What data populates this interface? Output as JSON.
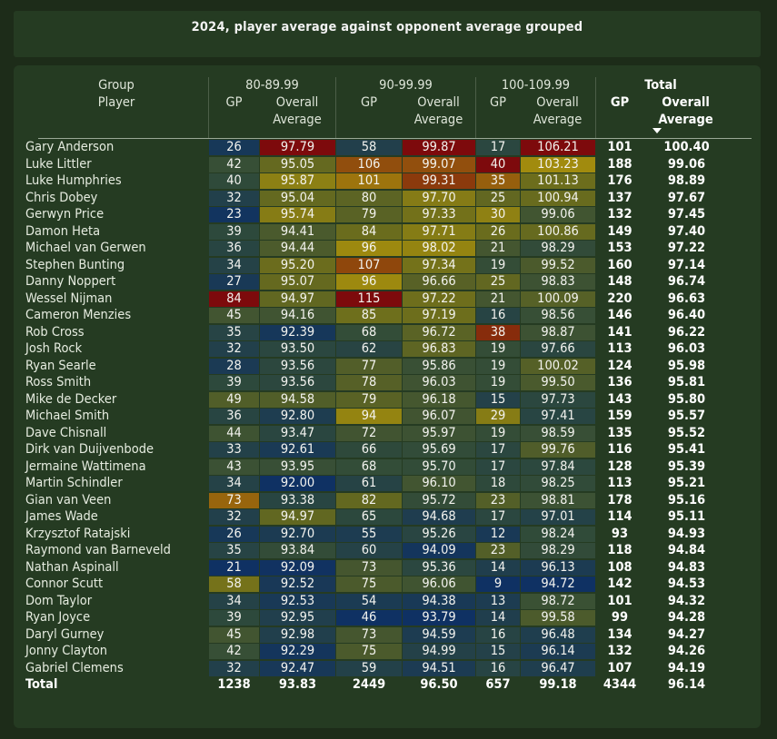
{
  "title": "2024, player average against opponent average grouped",
  "header": {
    "row_label_1": "Group",
    "row_label_2": "Player",
    "groups": [
      "80-89.99",
      "90-99.99",
      "100-109.99",
      "Total"
    ],
    "gp": "GP",
    "overall": "Overall",
    "average": "Average"
  },
  "colors": {
    "background": "#1d2c19",
    "card": "#253b22",
    "scale_low": "#0f3163",
    "scale_mid": "#a48d0d",
    "scale_high": "#7d0a0c"
  },
  "rows": [
    {
      "player": "Gary Anderson",
      "g1_gp": "26",
      "g1_avg": "97.79",
      "g2_gp": "58",
      "g2_avg": "99.87",
      "g3_gp": "17",
      "g3_avg": "106.21",
      "tot_gp": "101",
      "tot_avg": "100.40"
    },
    {
      "player": "Luke Littler",
      "g1_gp": "42",
      "g1_avg": "95.05",
      "g2_gp": "106",
      "g2_avg": "99.07",
      "g3_gp": "40",
      "g3_avg": "103.23",
      "tot_gp": "188",
      "tot_avg": "99.06"
    },
    {
      "player": "Luke Humphries",
      "g1_gp": "40",
      "g1_avg": "95.87",
      "g2_gp": "101",
      "g2_avg": "99.31",
      "g3_gp": "35",
      "g3_avg": "101.13",
      "tot_gp": "176",
      "tot_avg": "98.89"
    },
    {
      "player": "Chris Dobey",
      "g1_gp": "32",
      "g1_avg": "95.04",
      "g2_gp": "80",
      "g2_avg": "97.70",
      "g3_gp": "25",
      "g3_avg": "100.94",
      "tot_gp": "137",
      "tot_avg": "97.67"
    },
    {
      "player": "Gerwyn Price",
      "g1_gp": "23",
      "g1_avg": "95.74",
      "g2_gp": "79",
      "g2_avg": "97.33",
      "g3_gp": "30",
      "g3_avg": "99.06",
      "tot_gp": "132",
      "tot_avg": "97.45"
    },
    {
      "player": "Damon Heta",
      "g1_gp": "39",
      "g1_avg": "94.41",
      "g2_gp": "84",
      "g2_avg": "97.71",
      "g3_gp": "26",
      "g3_avg": "100.86",
      "tot_gp": "149",
      "tot_avg": "97.40"
    },
    {
      "player": "Michael van Gerwen",
      "g1_gp": "36",
      "g1_avg": "94.44",
      "g2_gp": "96",
      "g2_avg": "98.02",
      "g3_gp": "21",
      "g3_avg": "98.29",
      "tot_gp": "153",
      "tot_avg": "97.22"
    },
    {
      "player": "Stephen Bunting",
      "g1_gp": "34",
      "g1_avg": "95.20",
      "g2_gp": "107",
      "g2_avg": "97.34",
      "g3_gp": "19",
      "g3_avg": "99.52",
      "tot_gp": "160",
      "tot_avg": "97.14"
    },
    {
      "player": "Danny Noppert",
      "g1_gp": "27",
      "g1_avg": "95.07",
      "g2_gp": "96",
      "g2_avg": "96.66",
      "g3_gp": "25",
      "g3_avg": "98.83",
      "tot_gp": "148",
      "tot_avg": "96.74"
    },
    {
      "player": "Wessel Nijman",
      "g1_gp": "84",
      "g1_avg": "94.97",
      "g2_gp": "115",
      "g2_avg": "97.22",
      "g3_gp": "21",
      "g3_avg": "100.09",
      "tot_gp": "220",
      "tot_avg": "96.63"
    },
    {
      "player": "Cameron Menzies",
      "g1_gp": "45",
      "g1_avg": "94.16",
      "g2_gp": "85",
      "g2_avg": "97.19",
      "g3_gp": "16",
      "g3_avg": "98.56",
      "tot_gp": "146",
      "tot_avg": "96.40"
    },
    {
      "player": "Rob Cross",
      "g1_gp": "35",
      "g1_avg": "92.39",
      "g2_gp": "68",
      "g2_avg": "96.72",
      "g3_gp": "38",
      "g3_avg": "98.87",
      "tot_gp": "141",
      "tot_avg": "96.22"
    },
    {
      "player": "Josh Rock",
      "g1_gp": "32",
      "g1_avg": "93.50",
      "g2_gp": "62",
      "g2_avg": "96.83",
      "g3_gp": "19",
      "g3_avg": "97.66",
      "tot_gp": "113",
      "tot_avg": "96.03"
    },
    {
      "player": "Ryan Searle",
      "g1_gp": "28",
      "g1_avg": "93.56",
      "g2_gp": "77",
      "g2_avg": "95.86",
      "g3_gp": "19",
      "g3_avg": "100.02",
      "tot_gp": "124",
      "tot_avg": "95.98"
    },
    {
      "player": "Ross Smith",
      "g1_gp": "39",
      "g1_avg": "93.56",
      "g2_gp": "78",
      "g2_avg": "96.03",
      "g3_gp": "19",
      "g3_avg": "99.50",
      "tot_gp": "136",
      "tot_avg": "95.81"
    },
    {
      "player": "Mike de Decker",
      "g1_gp": "49",
      "g1_avg": "94.58",
      "g2_gp": "79",
      "g2_avg": "96.18",
      "g3_gp": "15",
      "g3_avg": "97.73",
      "tot_gp": "143",
      "tot_avg": "95.80"
    },
    {
      "player": "Michael Smith",
      "g1_gp": "36",
      "g1_avg": "92.80",
      "g2_gp": "94",
      "g2_avg": "96.07",
      "g3_gp": "29",
      "g3_avg": "97.41",
      "tot_gp": "159",
      "tot_avg": "95.57"
    },
    {
      "player": "Dave Chisnall",
      "g1_gp": "44",
      "g1_avg": "93.47",
      "g2_gp": "72",
      "g2_avg": "95.97",
      "g3_gp": "19",
      "g3_avg": "98.59",
      "tot_gp": "135",
      "tot_avg": "95.52"
    },
    {
      "player": "Dirk van Duijvenbode",
      "g1_gp": "33",
      "g1_avg": "92.61",
      "g2_gp": "66",
      "g2_avg": "95.69",
      "g3_gp": "17",
      "g3_avg": "99.76",
      "tot_gp": "116",
      "tot_avg": "95.41"
    },
    {
      "player": "Jermaine Wattimena",
      "g1_gp": "43",
      "g1_avg": "93.95",
      "g2_gp": "68",
      "g2_avg": "95.70",
      "g3_gp": "17",
      "g3_avg": "97.84",
      "tot_gp": "128",
      "tot_avg": "95.39"
    },
    {
      "player": "Martin Schindler",
      "g1_gp": "34",
      "g1_avg": "92.00",
      "g2_gp": "61",
      "g2_avg": "96.10",
      "g3_gp": "18",
      "g3_avg": "98.25",
      "tot_gp": "113",
      "tot_avg": "95.21"
    },
    {
      "player": "Gian van Veen",
      "g1_gp": "73",
      "g1_avg": "93.38",
      "g2_gp": "82",
      "g2_avg": "95.72",
      "g3_gp": "23",
      "g3_avg": "98.81",
      "tot_gp": "178",
      "tot_avg": "95.16"
    },
    {
      "player": "James Wade",
      "g1_gp": "32",
      "g1_avg": "94.97",
      "g2_gp": "65",
      "g2_avg": "94.68",
      "g3_gp": "17",
      "g3_avg": "97.01",
      "tot_gp": "114",
      "tot_avg": "95.11"
    },
    {
      "player": "Krzysztof Ratajski",
      "g1_gp": "26",
      "g1_avg": "92.70",
      "g2_gp": "55",
      "g2_avg": "95.26",
      "g3_gp": "12",
      "g3_avg": "98.24",
      "tot_gp": "93",
      "tot_avg": "94.93"
    },
    {
      "player": "Raymond van Barneveld",
      "g1_gp": "35",
      "g1_avg": "93.84",
      "g2_gp": "60",
      "g2_avg": "94.09",
      "g3_gp": "23",
      "g3_avg": "98.29",
      "tot_gp": "118",
      "tot_avg": "94.84"
    },
    {
      "player": "Nathan Aspinall",
      "g1_gp": "21",
      "g1_avg": "92.09",
      "g2_gp": "73",
      "g2_avg": "95.36",
      "g3_gp": "14",
      "g3_avg": "96.13",
      "tot_gp": "108",
      "tot_avg": "94.83"
    },
    {
      "player": "Connor Scutt",
      "g1_gp": "58",
      "g1_avg": "92.52",
      "g2_gp": "75",
      "g2_avg": "96.06",
      "g3_gp": "9",
      "g3_avg": "94.72",
      "tot_gp": "142",
      "tot_avg": "94.53"
    },
    {
      "player": "Dom Taylor",
      "g1_gp": "34",
      "g1_avg": "92.53",
      "g2_gp": "54",
      "g2_avg": "94.38",
      "g3_gp": "13",
      "g3_avg": "98.72",
      "tot_gp": "101",
      "tot_avg": "94.32"
    },
    {
      "player": "Ryan Joyce",
      "g1_gp": "39",
      "g1_avg": "92.95",
      "g2_gp": "46",
      "g2_avg": "93.79",
      "g3_gp": "14",
      "g3_avg": "99.58",
      "tot_gp": "99",
      "tot_avg": "94.28"
    },
    {
      "player": "Daryl Gurney",
      "g1_gp": "45",
      "g1_avg": "92.98",
      "g2_gp": "73",
      "g2_avg": "94.59",
      "g3_gp": "16",
      "g3_avg": "96.48",
      "tot_gp": "134",
      "tot_avg": "94.27"
    },
    {
      "player": "Jonny Clayton",
      "g1_gp": "42",
      "g1_avg": "92.29",
      "g2_gp": "75",
      "g2_avg": "94.99",
      "g3_gp": "15",
      "g3_avg": "96.14",
      "tot_gp": "132",
      "tot_avg": "94.26"
    },
    {
      "player": "Gabriel Clemens",
      "g1_gp": "32",
      "g1_avg": "92.47",
      "g2_gp": "59",
      "g2_avg": "94.51",
      "g3_gp": "16",
      "g3_avg": "96.47",
      "tot_gp": "107",
      "tot_avg": "94.19"
    }
  ],
  "total": {
    "player": "Total",
    "g1_gp": "1238",
    "g1_avg": "93.83",
    "g2_gp": "2449",
    "g2_avg": "96.50",
    "g3_gp": "657",
    "g3_avg": "99.18",
    "tot_gp": "4344",
    "tot_avg": "96.14"
  }
}
